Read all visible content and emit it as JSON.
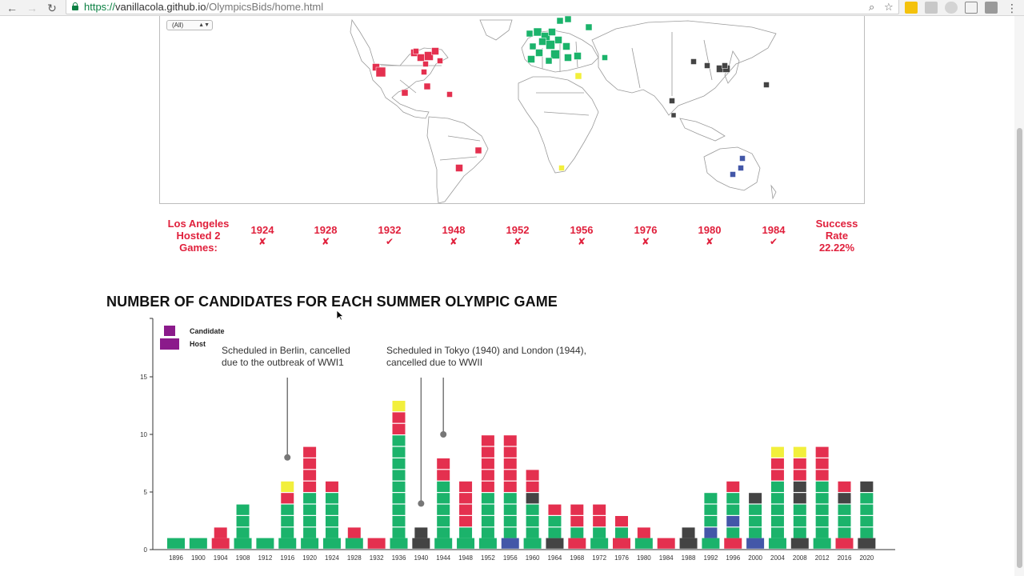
{
  "browser": {
    "url_scheme": "https://",
    "url_host": "vanillacola.github.io",
    "url_path": "/OlympicsBids/home.html",
    "back_icon": "←",
    "forward_icon": "→",
    "reload_icon": "↻",
    "zoom_icon": "⌕",
    "bookmark_icon": "☆",
    "menu_icon": "⋮"
  },
  "map": {
    "region_filter_value": "(All)",
    "colors": {
      "north_america": "#e4304f",
      "europe": "#1bb36b",
      "asia": "#444444",
      "africa": "#f2ef3c",
      "oceania": "#4357a8"
    }
  },
  "la_stats": {
    "label": "Los Angeles Hosted 2 Games:",
    "years": [
      {
        "year": "1924",
        "mark": "✘"
      },
      {
        "year": "1928",
        "mark": "✘"
      },
      {
        "year": "1932",
        "mark": "✔"
      },
      {
        "year": "1948",
        "mark": "✘"
      },
      {
        "year": "1952",
        "mark": "✘"
      },
      {
        "year": "1956",
        "mark": "✘"
      },
      {
        "year": "1976",
        "mark": "✘"
      },
      {
        "year": "1980",
        "mark": "✘"
      },
      {
        "year": "1984",
        "mark": "✔"
      }
    ],
    "rate_label": "Success Rate 22.22%"
  },
  "chart_title": "NUMBER OF CANDIDATES FOR EACH SUMMER OLYMPIC GAME",
  "chart_data": {
    "type": "bar",
    "stacked": true,
    "ylim": [
      0,
      20
    ],
    "yticks": [
      0,
      5,
      10,
      15
    ],
    "legend": [
      {
        "label": "Candidate",
        "color": "#8b1a8b"
      },
      {
        "label": "Host",
        "color": "#8b1a8b"
      }
    ],
    "legend_position": "top-left",
    "colors": {
      "E": "#1bb36b",
      "A": "#e4304f",
      "S": "#444444",
      "F": "#f2ef3c",
      "O": "#4357a8"
    },
    "years": [
      {
        "x": "1896",
        "host": "E",
        "cands": ""
      },
      {
        "x": "1900",
        "host": "E",
        "cands": ""
      },
      {
        "x": "1904",
        "host": "A",
        "cands": "A"
      },
      {
        "x": "1908",
        "host": "E",
        "cands": "EEE"
      },
      {
        "x": "1912",
        "host": "E",
        "cands": ""
      },
      {
        "x": "1916",
        "host": "E",
        "cands": "EEEAF"
      },
      {
        "x": "1920",
        "host": "E",
        "cands": "EEEEAAAA"
      },
      {
        "x": "1924",
        "host": "E",
        "cands": "EEEEA"
      },
      {
        "x": "1928",
        "host": "E",
        "cands": "A"
      },
      {
        "x": "1932",
        "host": "A",
        "cands": ""
      },
      {
        "x": "1936",
        "host": "E",
        "cands": "EEEEEEEEEAAF"
      },
      {
        "x": "1940",
        "host": "S",
        "cands": "S"
      },
      {
        "x": "1944",
        "host": "E",
        "cands": "EEEEEAA"
      },
      {
        "x": "1948",
        "host": "E",
        "cands": "EAAAA"
      },
      {
        "x": "1952",
        "host": "E",
        "cands": "EEEEAAAAA"
      },
      {
        "x": "1956",
        "host": "O",
        "cands": "EEEEAAAAA"
      },
      {
        "x": "1960",
        "host": "E",
        "cands": "EEESAA"
      },
      {
        "x": "1964",
        "host": "S",
        "cands": "EEA"
      },
      {
        "x": "1968",
        "host": "A",
        "cands": "EAA"
      },
      {
        "x": "1972",
        "host": "E",
        "cands": "EAA"
      },
      {
        "x": "1976",
        "host": "A",
        "cands": "EA"
      },
      {
        "x": "1980",
        "host": "E",
        "cands": "A"
      },
      {
        "x": "1984",
        "host": "A",
        "cands": ""
      },
      {
        "x": "1988",
        "host": "S",
        "cands": "S"
      },
      {
        "x": "1992",
        "host": "E",
        "cands": "OEEE"
      },
      {
        "x": "1996",
        "host": "A",
        "cands": "EOEEA"
      },
      {
        "x": "2000",
        "host": "O",
        "cands": "EEES"
      },
      {
        "x": "2004",
        "host": "E",
        "cands": "EEEEEAAF"
      },
      {
        "x": "2008",
        "host": "S",
        "cands": "EEESSAAF"
      },
      {
        "x": "2012",
        "host": "E",
        "cands": "EEEEEAAA"
      },
      {
        "x": "2016",
        "host": "A",
        "cands": "EEESA"
      },
      {
        "x": "2020",
        "host": "S",
        "cands": "EEEES"
      }
    ],
    "annotations": [
      {
        "line1": "Scheduled in Berlin, cancelled",
        "line2": "due to the outbreak of WWI1"
      },
      {
        "line1": "Scheduled in Tokyo (1940) and London (1944),",
        "line2": "cancelled due to WWII"
      }
    ]
  }
}
